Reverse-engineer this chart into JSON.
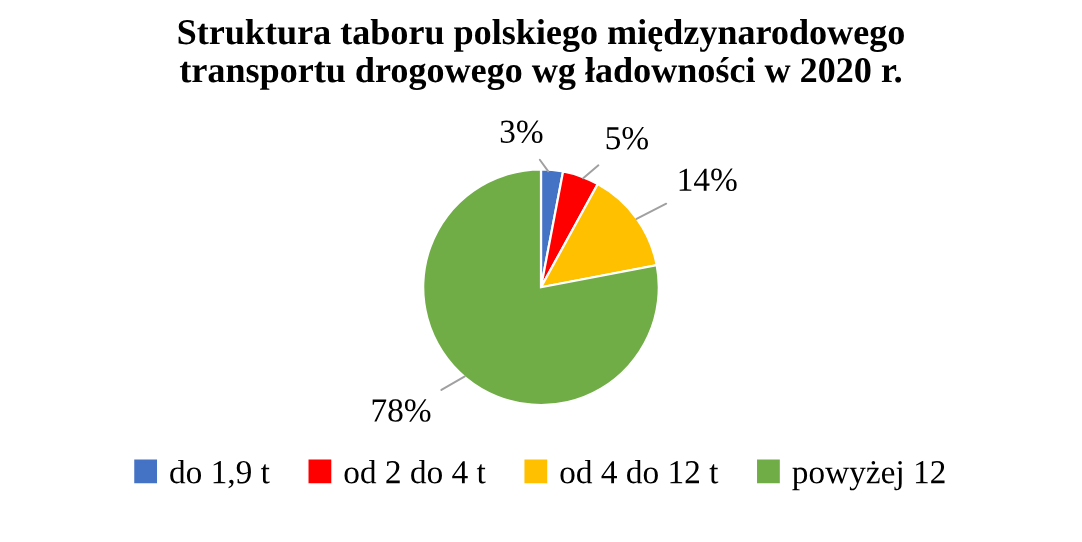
{
  "chart_data": {
    "type": "pie",
    "title": "Struktura taboru polskiego międzynarodowego\ntransportu drogowego wg ładowności w 2020 r.",
    "categories": [
      "do 1,9 t",
      "od 2 do 4 t",
      "od 4 do 12 t",
      "powyżej 12"
    ],
    "values": [
      3,
      5,
      14,
      78
    ],
    "value_labels": [
      "3%",
      "5%",
      "14%",
      "78%"
    ],
    "colors": [
      "#4472c4",
      "#ff0000",
      "#ffc000",
      "#70ad47"
    ],
    "legend": "bottom"
  }
}
